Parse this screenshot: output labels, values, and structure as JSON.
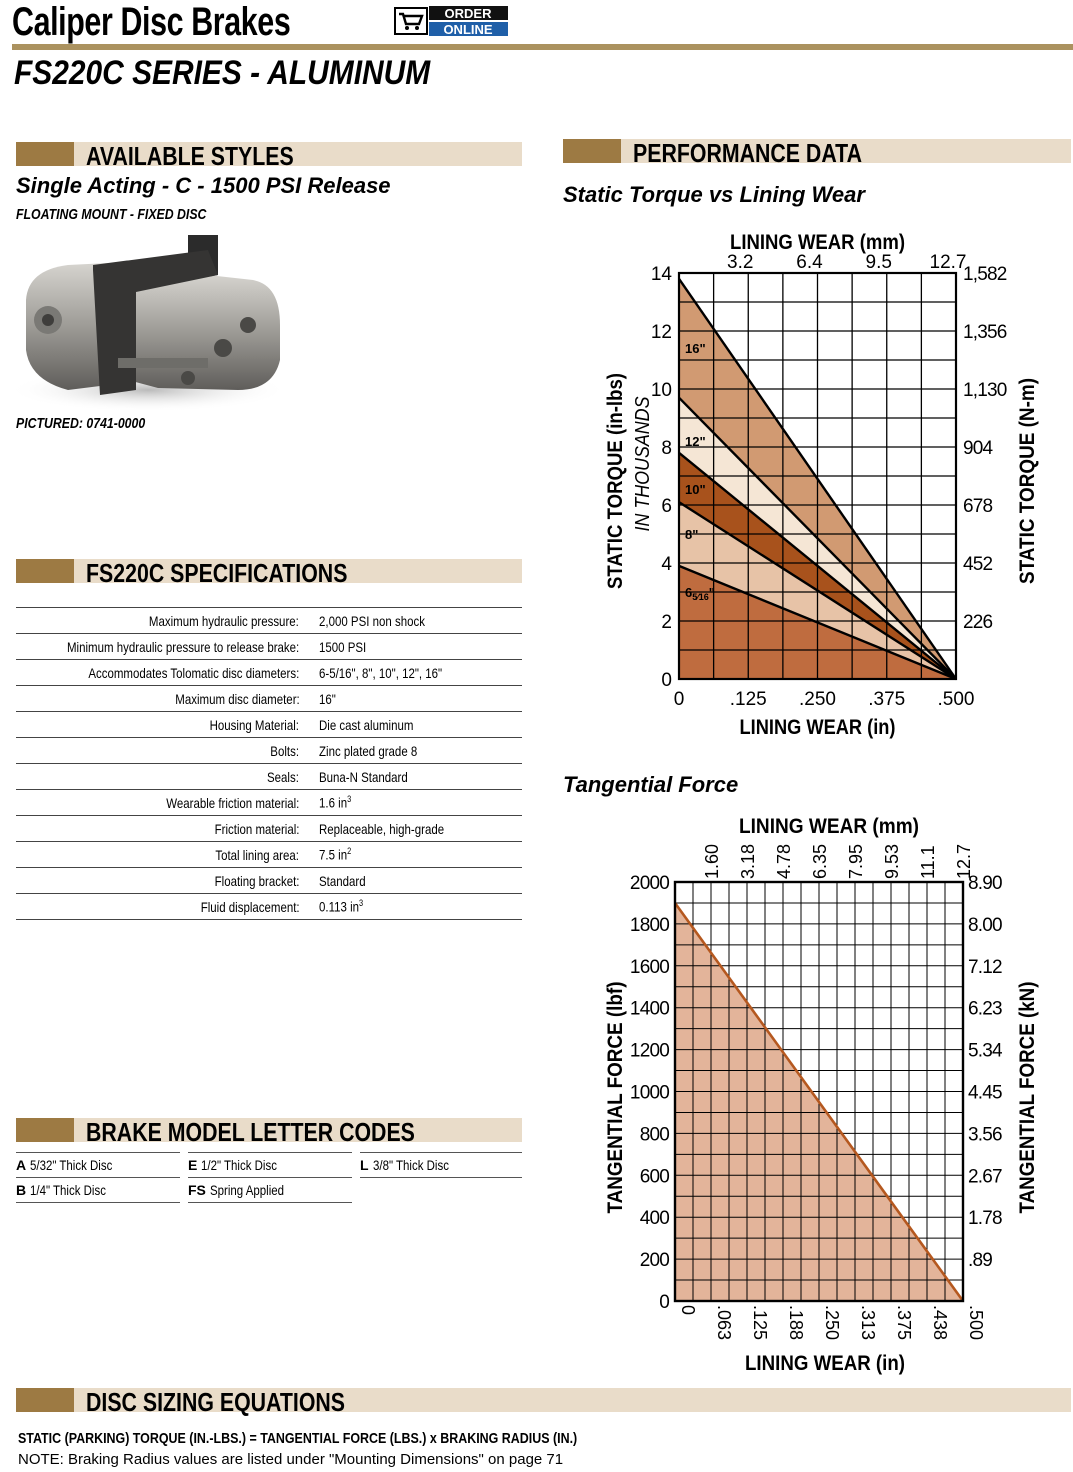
{
  "header": {
    "title": "Caliper Disc Brakes",
    "badge_line1": "ORDER",
    "badge_line2": "ONLINE",
    "subtitle": "FS220C SERIES - ALUMINUM"
  },
  "styles": {
    "heading": "AVAILABLE STYLES",
    "style_name": "Single Acting -  C - 1500 PSI Release",
    "mount": "FLOATING MOUNT - FIXED DISC",
    "pictured": "PICTURED: 0741-0000"
  },
  "specs": {
    "heading": "FS220C SPECIFICATIONS",
    "rows": [
      {
        "label": "Maximum hydraulic pressure:",
        "value": "2,000 PSI non shock"
      },
      {
        "label": "Minimum hydraulic pressure to release brake:",
        "value": "1500 PSI"
      },
      {
        "label": "Accommodates Tolomatic disc diameters:",
        "value": "6-5/16\", 8\", 10\", 12\", 16\""
      },
      {
        "label": "Maximum disc diameter:",
        "value": "16\""
      },
      {
        "label": "Housing Material:",
        "value": "Die cast aluminum"
      },
      {
        "label": "Bolts:",
        "value": "Zinc plated grade 8"
      },
      {
        "label": "Seals:",
        "value": "Buna-N Standard"
      },
      {
        "label": "Wearable friction material:",
        "value": "1.6 in",
        "sup": "3"
      },
      {
        "label": "Friction material:",
        "value": "Replaceable, high-grade"
      },
      {
        "label": "Total lining area:",
        "value": "7.5 in",
        "sup": "2"
      },
      {
        "label": "Floating bracket:",
        "value": "Standard"
      },
      {
        "label": "Fluid displacement:",
        "value": "0.113 in",
        "sup": "3"
      }
    ]
  },
  "codes": {
    "heading": "BRAKE MODEL LETTER CODES",
    "items": [
      {
        "code": "A",
        "desc": "5/32\" Thick Disc"
      },
      {
        "code": "E",
        "desc": "1/2\" Thick Disc"
      },
      {
        "code": "L",
        "desc": "3/8\" Thick Disc"
      },
      {
        "code": "B",
        "desc": "1/4\" Thick Disc"
      },
      {
        "code": "FS",
        "desc": "Spring Applied"
      }
    ]
  },
  "performance": {
    "heading": "PERFORMANCE DATA"
  },
  "equations": {
    "heading": "DISC SIZING EQUATIONS",
    "line1": "STATIC (PARKING) TORQUE (IN.-LBS.) = TANGENTIAL FORCE (LBS.) x BRAKING RADIUS (IN.)",
    "line2": "NOTE: Braking Radius values are listed under \"Mounting Dimensions\" on page 71"
  },
  "colors": {
    "rule": "#ab925f",
    "bar_light": "#e9dcc9",
    "bar_dark": "#9d7a43",
    "badge_blue": "#1f5fa8"
  },
  "chart_data": [
    {
      "type": "area",
      "title": "Static Torque vs Lining Wear",
      "xlabel": "LINING WEAR (in)",
      "x2label": "LINING WEAR (mm)",
      "ylabel": "STATIC TORQUE (in-lbs)",
      "ylabel_sub": "IN THOUSANDS",
      "y2label": "STATIC TORQUE (N-m)",
      "xlim": [
        0,
        0.5
      ],
      "ylim": [
        0,
        14
      ],
      "x_ticks": [
        ".125",
        ".250",
        ".375",
        ".500"
      ],
      "x_origin": "0",
      "x2_ticks": [
        "3.2",
        "6.4",
        "9.5",
        "12.7"
      ],
      "y_ticks": [
        "0",
        "2",
        "4",
        "6",
        "8",
        "10",
        "12",
        "14"
      ],
      "y2_ticks": [
        "226",
        "452",
        "678",
        "904",
        "1,130",
        "1,356",
        "1,582"
      ],
      "series": [
        {
          "name": "16\"",
          "x": [
            0,
            0.5
          ],
          "y": [
            13.8,
            0
          ],
          "color": "#d19a72"
        },
        {
          "name": "12\"",
          "x": [
            0,
            0.5
          ],
          "y": [
            9.7,
            0
          ],
          "color": "#f5e6d5"
        },
        {
          "name": "10\"",
          "x": [
            0,
            0.5
          ],
          "y": [
            7.8,
            0
          ],
          "color": "#a8521c"
        },
        {
          "name": "8\"",
          "x": [
            0,
            0.5
          ],
          "y": [
            6.1,
            0
          ],
          "color": "#e7c3a7"
        },
        {
          "name_main": "6",
          "name_frac": "5⁄16",
          "name_suffix": "\"",
          "x": [
            0,
            0.5
          ],
          "y": [
            3.9,
            0
          ],
          "color": "#bf6c3f"
        }
      ],
      "grid": true
    },
    {
      "type": "line",
      "title": "Tangential Force",
      "xlabel": "LINING WEAR (in)",
      "x2label": "LINING WEAR (mm)",
      "ylabel": "TANGENTIAL FORCE (lbf)",
      "y2label": "TANGENTIAL FORCE (kN)",
      "xlim": [
        0,
        0.5
      ],
      "ylim": [
        0,
        2000
      ],
      "x_ticks": [
        "0",
        ".063",
        ".125",
        ".188",
        ".250",
        ".313",
        ".375",
        ".438",
        ".500"
      ],
      "x2_ticks": [
        "1.60",
        "3.18",
        "4.78",
        "6.35",
        "7.95",
        "9.53",
        "11.1",
        "12.7"
      ],
      "y_ticks": [
        "0",
        "200",
        "400",
        "600",
        "800",
        "1000",
        "1200",
        "1400",
        "1600",
        "1800",
        "2000"
      ],
      "y2_ticks": [
        ".89",
        "1.78",
        "2.67",
        "3.56",
        "4.45",
        "5.34",
        "6.23",
        "7.12",
        "8.00",
        "8.90"
      ],
      "series": [
        {
          "x": [
            0,
            0.5
          ],
          "y": [
            1900,
            0
          ],
          "color": "#b5581f",
          "fill": "#e3b49a"
        }
      ],
      "grid": true
    }
  ]
}
